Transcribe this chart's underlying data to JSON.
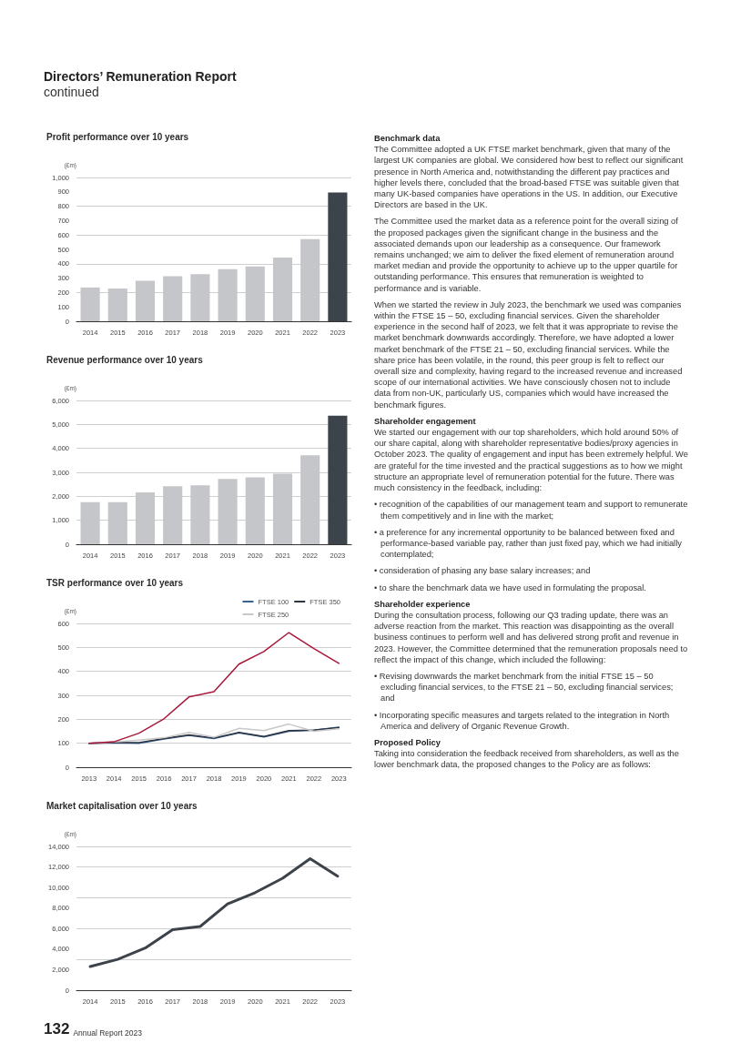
{
  "chart_data": [
    {
      "type": "other",
      "title": "Directors’ Remuneration Report",
      "subtitle": "continued",
      "annotations": [
        "Benchmark data",
        "The Committee adopted a UK FTSE market benchmark, given that many of the largest UK companies are global. We considered how best to reflect our significant presence in North America and, notwithstanding the different pay practices and higher levels there, concluded that the broad-based FTSE was suitable given that many UK-based companies have operations in the US. In addition, our Executive Directors are based in the UK.",
        "The Committee used the market data as a reference point for the overall sizing of the proposed packages given the significant change in the business and the associated demands upon our leadership as a consequence. Our framework remains unchanged; we aim to deliver the fixed element of remuneration around market median and provide the opportunity to achieve up to the upper quartile for outstanding performance. This ensures that remuneration is weighted to performance and is variable.",
        "When we started the review in July 2023, the benchmark we used was companies within the FTSE 15 – 50, excluding financial services. Given the shareholder experience in the second half of 2023, we felt that it was appropriate to revise the market benchmark downwards accordingly. Therefore, we have adopted a lower market benchmark of the FTSE 21 – 50, excluding financial services. While the share price has been volatile, in the round, this peer group is felt to reflect our overall size and complexity, having regard to the increased revenue and increased scope of our international activities. We have consciously chosen not to include data from non-UK, particularly US, companies which would have increased the benchmark figures.",
        "Shareholder engagement",
        "We started our engagement with our top shareholders, which hold around 50% of our share capital, along with shareholder representative bodies/proxy agencies in October 2023. The quality of engagement and input has been extremely helpful. We are grateful for the time invested and the practical suggestions as to how we might structure an appropriate level of remuneration potential for the future. There was much consistency in the feedback, including:",
        "• recognition of the capabilities of our management team and support to remunerate them competitively and in line with the market;",
        "• a preference for any incremental opportunity to be balanced between fixed and performance-based variable pay, rather than just fixed pay, which we had initially contemplated;",
        "• consideration of phasing any base salary increases; and",
        "• to share the benchmark data we have used in formulating the proposal.",
        "Shareholder experience",
        "During the consultation process, following our Q3 trading update, there was an adverse reaction from the market. This reaction was disappointing as the overall business continues to perform well and has delivered strong profit and revenue in 2023. However, the Committee determined that the remuneration proposals need to reflect the impact of this change, which included the following:",
        "• Revising downwards the market benchmark from the initial FTSE 15 – 50 excluding financial services, to the FTSE 21 – 50, excluding financial services; and",
        "• Incorporating specific measures and targets related to the integration in North America and delivery of Organic Revenue Growth.",
        "Proposed Policy",
        "Taking into consideration the feedback received from shareholders, as well as the lower benchmark data, the proposed changes to the Policy are as follows:"
      ]
    },
    {
      "type": "bar",
      "title": "Profit performance over 10 years",
      "ylabel": "(£m)",
      "categories": [
        "2014",
        "2015",
        "2016",
        "2017",
        "2018",
        "2019",
        "2020",
        "2021",
        "2022",
        "2023"
      ],
      "values": [
        235,
        228,
        282,
        313,
        327,
        363,
        381,
        443,
        571,
        895
      ],
      "colors": [
        "#c5c6c9",
        "#c5c6c9",
        "#c5c6c9",
        "#c5c6c9",
        "#c5c6c9",
        "#c5c6c9",
        "#c5c6c9",
        "#c5c6c9",
        "#c5c6c9",
        "#3d434b"
      ],
      "ylim": [
        0,
        1000
      ],
      "yticks": [
        0,
        100,
        200,
        300,
        400,
        500,
        600,
        700,
        800,
        900,
        {
          "value": 1000,
          "label": "1,000"
        }
      ],
      "grid": "y"
    },
    {
      "type": "bar",
      "title": "Revenue performance over 10 years",
      "ylabel": "(£m)",
      "categories": [
        "2014",
        "2015",
        "2016",
        "2017",
        "2018",
        "2019",
        "2020",
        "2021",
        "2022",
        "2023"
      ],
      "values": [
        1760,
        1760,
        2160,
        2420,
        2460,
        2720,
        2790,
        2940,
        3710,
        5360
      ],
      "colors": [
        "#c5c6c9",
        "#c5c6c9",
        "#c5c6c9",
        "#c5c6c9",
        "#c5c6c9",
        "#c5c6c9",
        "#c5c6c9",
        "#c5c6c9",
        "#c5c6c9",
        "#3d434b"
      ],
      "ylim": [
        0,
        6000
      ],
      "yticks": [
        0,
        {
          "value": 1000,
          "label": "1,000"
        },
        {
          "value": 2000,
          "label": "2,000"
        },
        {
          "value": 3000,
          "label": "3,000"
        },
        {
          "value": 4000,
          "label": "4,000"
        },
        {
          "value": 5000,
          "label": "5,000"
        },
        {
          "value": 6000,
          "label": "6,000"
        }
      ],
      "grid": "y"
    },
    {
      "type": "line",
      "title": "TSR performance over 10 years",
      "ylabel": "(£m)",
      "categories": [
        "2013",
        "2014",
        "2015",
        "2016",
        "2017",
        "2018",
        "2019",
        "2020",
        "2021",
        "2022",
        "2023"
      ],
      "series": [
        {
          "name": "FTSE 100",
          "color": "#3a5f95",
          "values": [
            100,
            102,
            100,
            118,
            133,
            120,
            143,
            126,
            150,
            155,
            167
          ]
        },
        {
          "name": "FTSE 350",
          "color": "#2c3440",
          "values": [
            100,
            103,
            103,
            120,
            135,
            122,
            145,
            128,
            153,
            155,
            165
          ]
        },
        {
          "name": "FTSE 250",
          "color": "#c8c8c8",
          "values": [
            100,
            105,
            113,
            123,
            145,
            125,
            162,
            153,
            180,
            150,
            160
          ]
        },
        {
          "color": "#a8173a",
          "values": [
            100,
            106,
            142,
            202,
            293,
            315,
            430,
            483,
            562,
            495,
            433
          ]
        }
      ],
      "ylim": [
        0,
        600
      ],
      "yticks": [
        0,
        100,
        200,
        300,
        400,
        500,
        600
      ],
      "grid": "y",
      "legend": "top right",
      "marker": "none"
    },
    {
      "type": "line",
      "title": "Market capitalisation over 10 years",
      "ylabel": "(£m)",
      "categories": [
        "2014",
        "2015",
        "2016",
        "2017",
        "2018",
        "2019",
        "2020",
        "2021",
        "2022",
        "2023"
      ],
      "series": [
        {
          "color": "#3d434b",
          "values": [
            2300,
            3000,
            4100,
            5900,
            6200,
            8400,
            9500,
            10900,
            12800,
            11100
          ]
        }
      ],
      "ylim": [
        0,
        14000
      ],
      "yticks": [
        0,
        {
          "value": 2000,
          "label": "2,000"
        },
        {
          "value": 4000,
          "label": "4,000"
        },
        {
          "value": 6000,
          "label": "6,000"
        },
        {
          "value": 8000,
          "label": "8,000"
        },
        {
          "value": 10000,
          "label": "10,000"
        },
        {
          "value": 12000,
          "label": "12,000"
        },
        {
          "value": 14000,
          "label": "14,000"
        }
      ],
      "grid": "y",
      "marker": "none"
    },
    {
      "type": "other",
      "annotations": [
        "132",
        "Annual Report 2023"
      ]
    }
  ]
}
